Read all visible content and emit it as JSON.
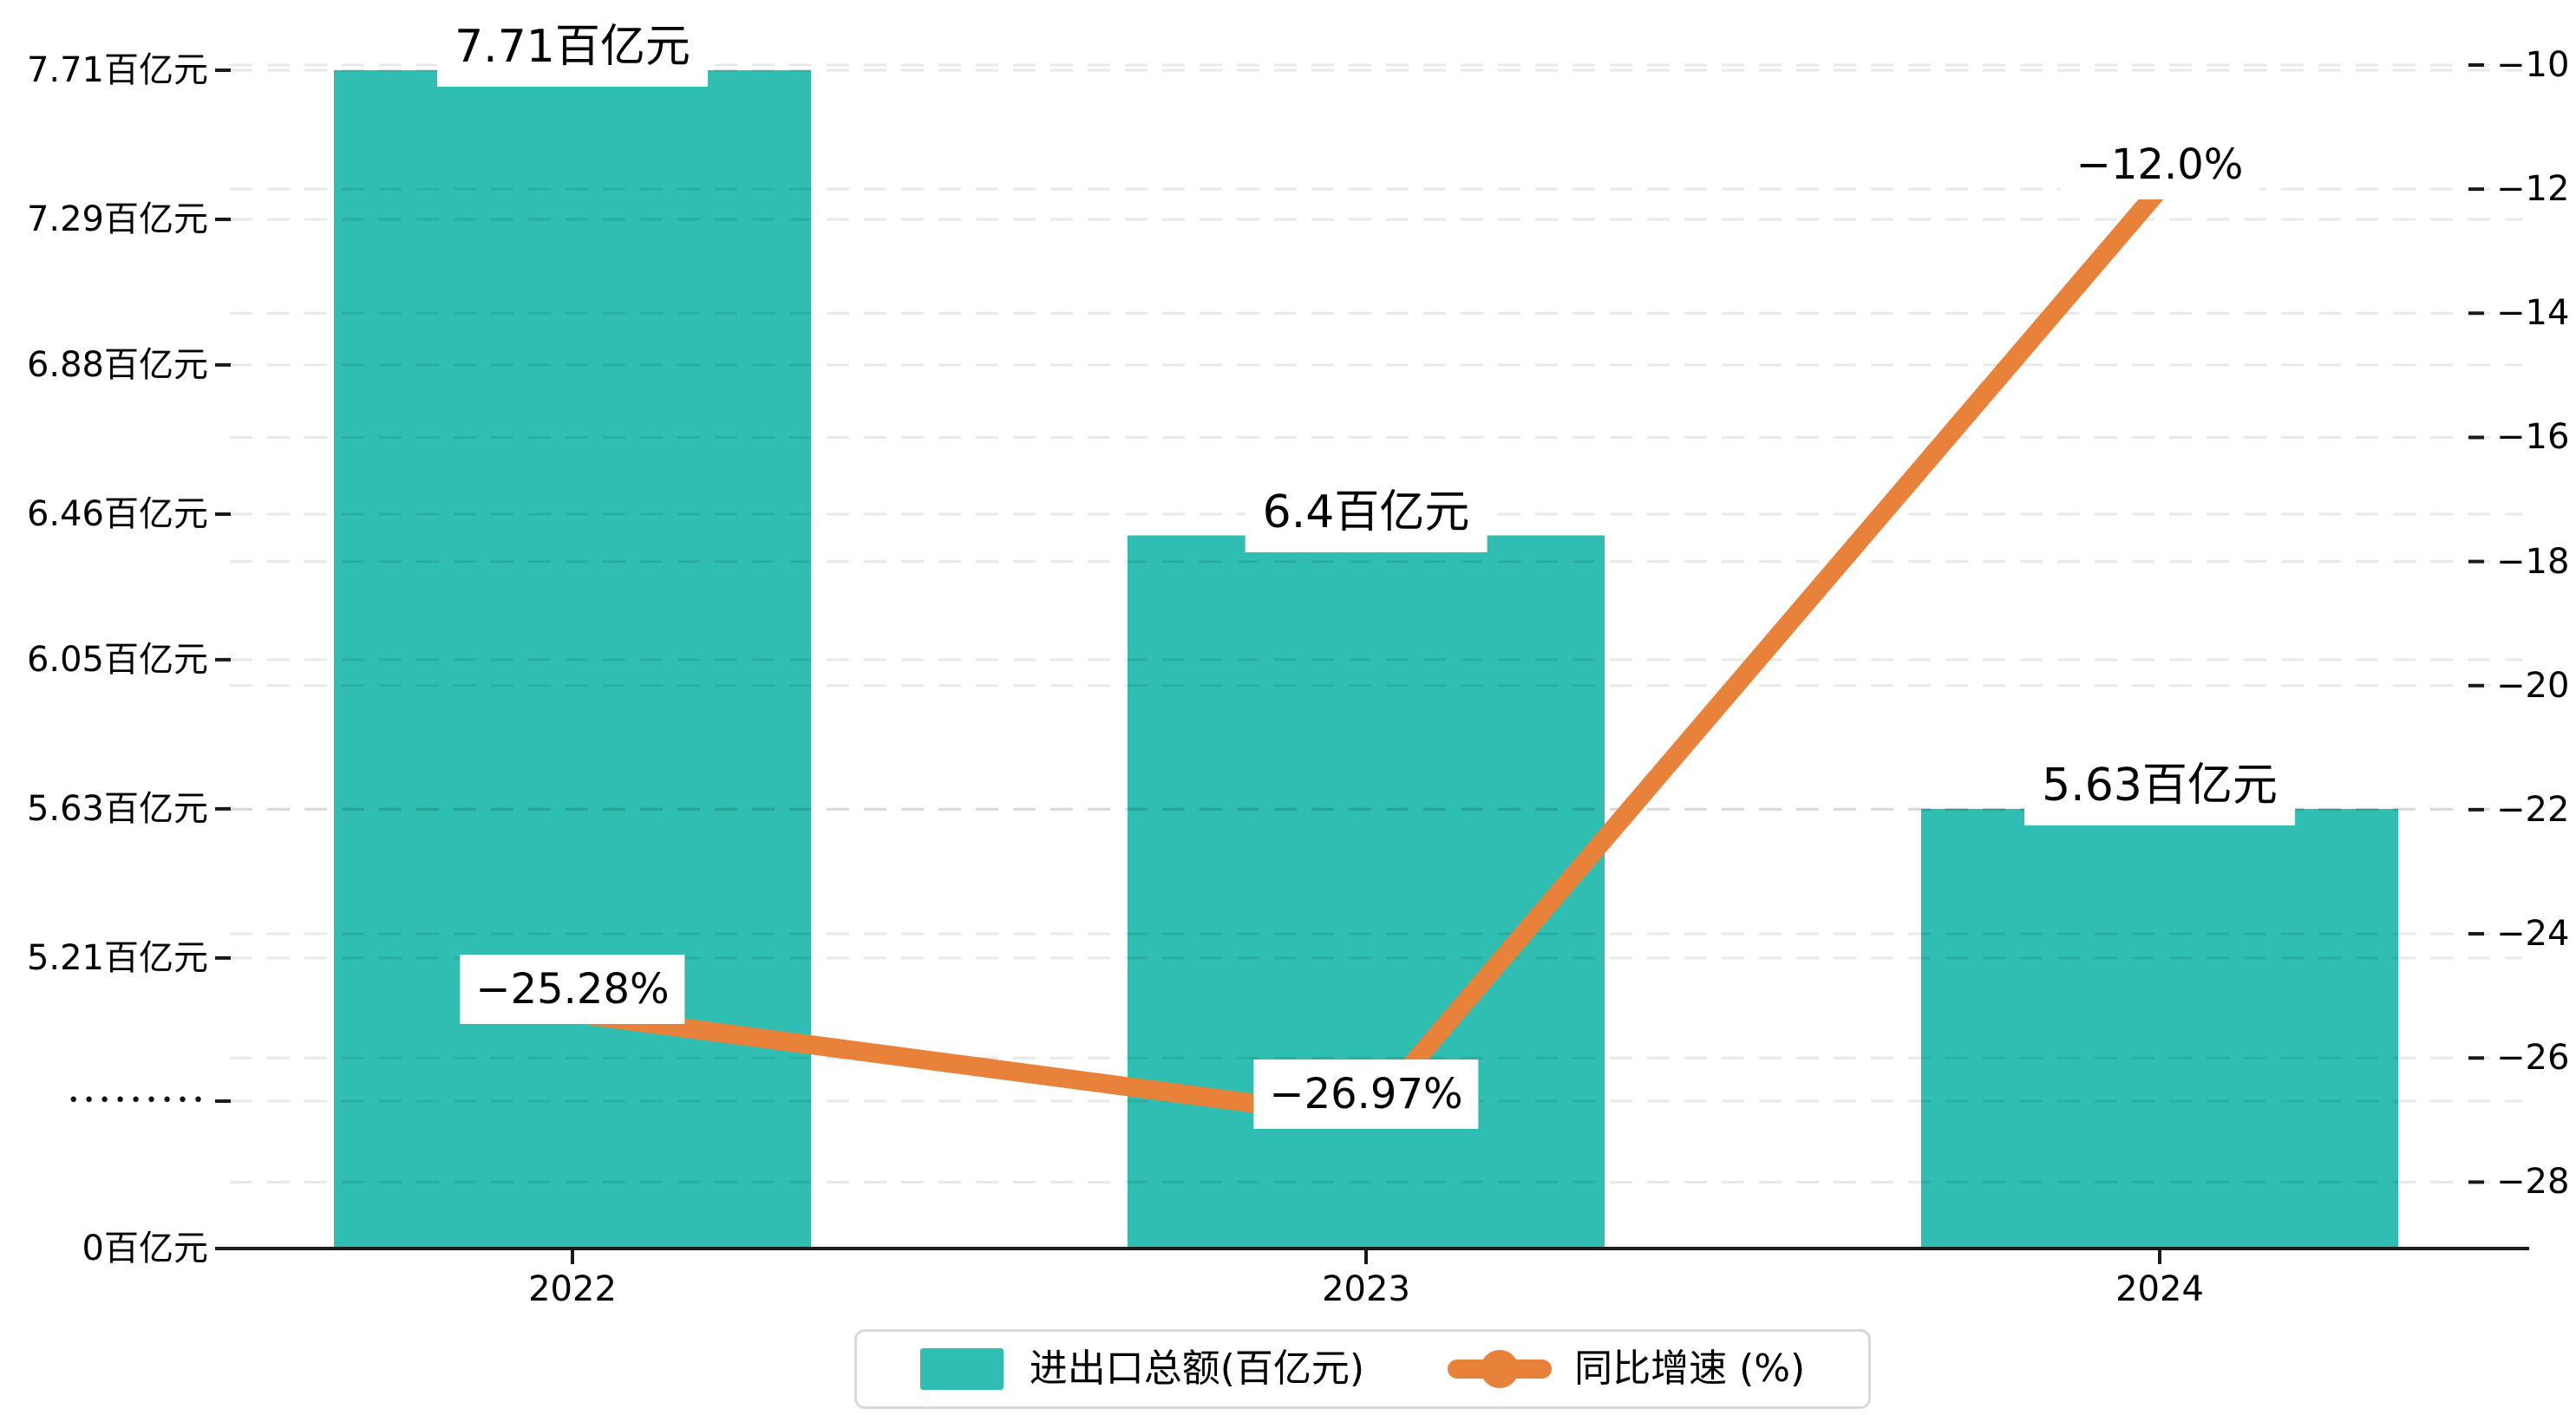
{
  "chart_data": {
    "type": "combo",
    "title": "",
    "categories": [
      "2022",
      "2023",
      "2024"
    ],
    "series": [
      {
        "name": "进出口总额(百亿元)",
        "type": "bar",
        "axis": "left",
        "color": "#2fbeb1",
        "values": [
          7.71,
          6.4,
          5.63
        ],
        "labels": [
          "7.71百亿元",
          "6.4百亿元",
          "5.63百亿元"
        ]
      },
      {
        "name": "同比增速 (%)",
        "type": "line",
        "axis": "right",
        "color": "#e8823a",
        "values": [
          -25.28,
          -26.97,
          -12.0
        ],
        "labels": [
          "−25.28%",
          "−26.97%",
          "−12.0%"
        ]
      }
    ],
    "left_axis": {
      "unit": "百亿元",
      "tick_values": [
        7.71,
        7.29,
        6.88,
        6.46,
        6.05,
        5.63,
        5.21
      ],
      "tick_labels": [
        "7.71百亿元",
        "7.29百亿元",
        "6.88百亿元",
        "6.46百亿元",
        "6.05百亿元",
        "5.63百亿元",
        "5.21百亿元"
      ],
      "break_label": "•••••••••",
      "zero_label": "0百亿元",
      "has_axis_break": true
    },
    "right_axis": {
      "tick_values": [
        -10,
        -12,
        -14,
        -16,
        -18,
        -20,
        -22,
        -24,
        -26,
        -28
      ],
      "tick_labels": [
        "−10",
        "−12",
        "−14",
        "−16",
        "−18",
        "−20",
        "−22",
        "−24",
        "−26",
        "−28"
      ]
    },
    "grid": true,
    "legend": {
      "position": "bottom",
      "items": [
        {
          "label": "进出口总额(百亿元)",
          "marker": "square",
          "color": "#2fbeb1"
        },
        {
          "label": "同比增速 (%)",
          "marker": "line-dot",
          "color": "#e8823a"
        }
      ]
    },
    "colors": {
      "bar": "#2fbeb1",
      "line": "#e8823a",
      "grid": "rgba(0,0,0,0.085)",
      "axis": "#1a1a1a",
      "text": "#000000",
      "background": "#ffffff",
      "legend_border": "#d9d9d9"
    }
  }
}
